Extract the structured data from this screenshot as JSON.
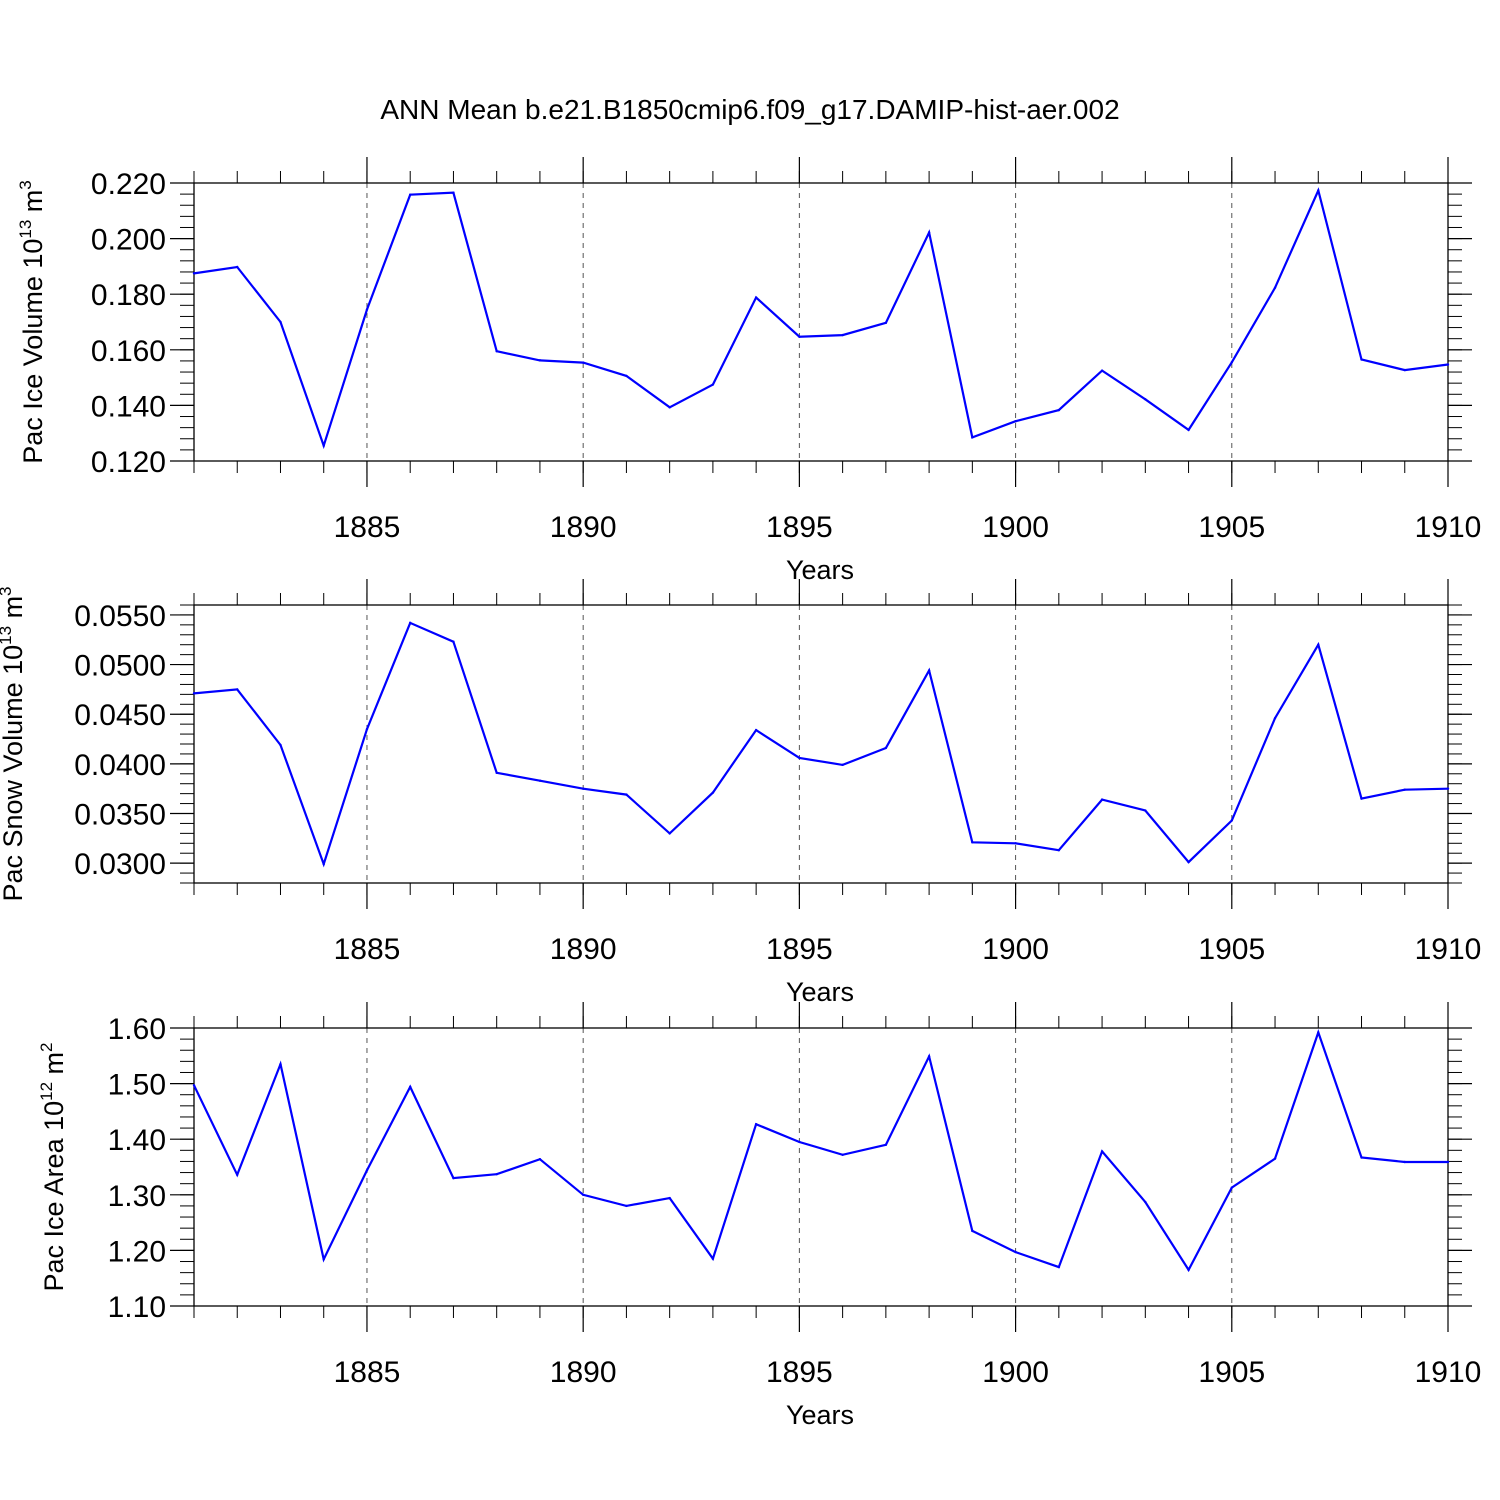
{
  "title": "ANN Mean b.e21.B1850cmip6.f09_g17.DAMIP-hist-aer.002",
  "colors": {
    "line": "#0000ff",
    "axis": "#000000",
    "grid": "#555555"
  },
  "chart_data": [
    {
      "type": "line",
      "ylabel": {
        "text": "Pac Ice Volume 10",
        "sup": "13",
        "unit": " m",
        "unit_sup": "3"
      },
      "xlabel": "Years",
      "xlim": [
        1881,
        1910
      ],
      "ylim": [
        0.12,
        0.22
      ],
      "yticks": [
        "0.120",
        "0.140",
        "0.160",
        "0.180",
        "0.200",
        "0.220"
      ],
      "yminor_step": 0.004,
      "xticks": [
        "1885",
        "1890",
        "1895",
        "1900",
        "1905",
        "1910"
      ],
      "x": [
        1881,
        1882,
        1883,
        1884,
        1885,
        1886,
        1887,
        1888,
        1889,
        1890,
        1891,
        1892,
        1893,
        1894,
        1895,
        1896,
        1897,
        1898,
        1899,
        1900,
        1901,
        1902,
        1903,
        1904,
        1905,
        1906,
        1907,
        1908,
        1909,
        1910
      ],
      "values": [
        0.1875,
        0.1898,
        0.17,
        0.1255,
        0.1745,
        0.2158,
        0.2165,
        0.1595,
        0.1562,
        0.1554,
        0.1506,
        0.1393,
        0.1475,
        0.1788,
        0.1647,
        0.1653,
        0.1697,
        0.2022,
        0.1285,
        0.1343,
        0.1383,
        0.1525,
        0.1422,
        0.1312,
        0.1555,
        0.1823,
        0.2173,
        0.1565,
        0.1527,
        0.1547
      ]
    },
    {
      "type": "line",
      "ylabel": {
        "text": "Pac Snow Volume 10",
        "sup": "13",
        "unit": " m",
        "unit_sup": "3"
      },
      "xlabel": "Years",
      "xlim": [
        1881,
        1910
      ],
      "ylim": [
        0.028,
        0.056
      ],
      "yticks": [
        "0.0300",
        "0.0350",
        "0.0400",
        "0.0450",
        "0.0500",
        "0.0550"
      ],
      "yminor_step": 0.001,
      "xticks": [
        "1885",
        "1890",
        "1895",
        "1900",
        "1905",
        "1910"
      ],
      "x": [
        1881,
        1882,
        1883,
        1884,
        1885,
        1886,
        1887,
        1888,
        1889,
        1890,
        1891,
        1892,
        1893,
        1894,
        1895,
        1896,
        1897,
        1898,
        1899,
        1900,
        1901,
        1902,
        1903,
        1904,
        1905,
        1906,
        1907,
        1908,
        1909,
        1910
      ],
      "values": [
        0.0471,
        0.0475,
        0.0419,
        0.0299,
        0.0435,
        0.0542,
        0.0523,
        0.0391,
        0.0383,
        0.0375,
        0.0369,
        0.033,
        0.0371,
        0.0434,
        0.0406,
        0.0399,
        0.0416,
        0.0494,
        0.0321,
        0.032,
        0.0313,
        0.0364,
        0.0353,
        0.0301,
        0.0343,
        0.0446,
        0.052,
        0.0365,
        0.0374,
        0.0375
      ]
    },
    {
      "type": "line",
      "ylabel": {
        "text": "Pac Ice Area 10",
        "sup": "12",
        "unit": " m",
        "unit_sup": "2"
      },
      "xlabel": "Years",
      "xlim": [
        1881,
        1910
      ],
      "ylim": [
        1.1,
        1.6
      ],
      "yticks": [
        "1.10",
        "1.20",
        "1.30",
        "1.40",
        "1.50",
        "1.60"
      ],
      "yminor_step": 0.02,
      "xticks": [
        "1885",
        "1890",
        "1895",
        "1900",
        "1905",
        "1910"
      ],
      "x": [
        1881,
        1882,
        1883,
        1884,
        1885,
        1886,
        1887,
        1888,
        1889,
        1890,
        1891,
        1892,
        1893,
        1894,
        1895,
        1896,
        1897,
        1898,
        1899,
        1900,
        1901,
        1902,
        1903,
        1904,
        1905,
        1906,
        1907,
        1908,
        1909,
        1910
      ],
      "values": [
        1.497,
        1.336,
        1.535,
        1.184,
        1.344,
        1.494,
        1.33,
        1.337,
        1.364,
        1.3,
        1.28,
        1.294,
        1.185,
        1.427,
        1.395,
        1.372,
        1.39,
        1.549,
        1.235,
        1.197,
        1.17,
        1.378,
        1.287,
        1.165,
        1.313,
        1.365,
        1.592,
        1.367,
        1.359,
        1.359
      ]
    }
  ]
}
